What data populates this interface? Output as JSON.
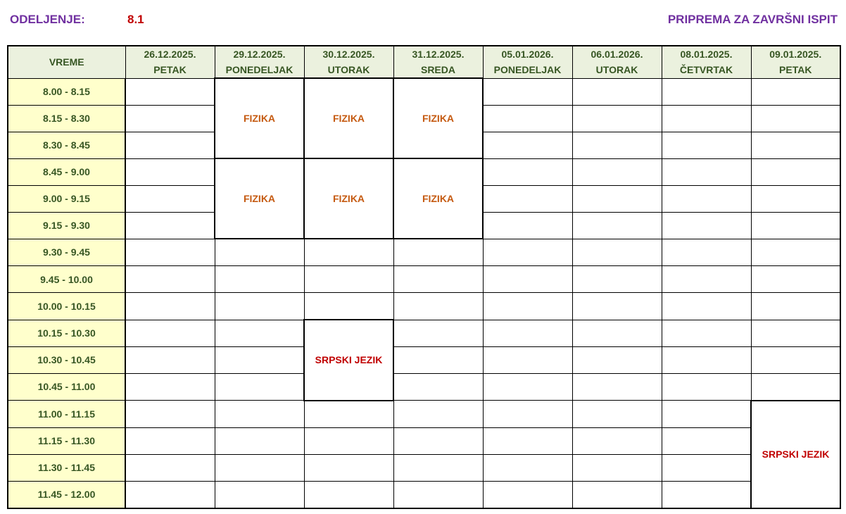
{
  "header": {
    "label": "ODELJENJE:",
    "class": "8.1",
    "title": "PRIPREMA ZA ZAVRŠNI ISPIT"
  },
  "table": {
    "time_header": "VREME",
    "days": [
      {
        "date": "26.12.2025.",
        "day": "PETAK"
      },
      {
        "date": "29.12.2025.",
        "day": "PONEDELJAK"
      },
      {
        "date": "30.12.2025.",
        "day": "UTORAK"
      },
      {
        "date": "31.12.2025.",
        "day": "SREDA"
      },
      {
        "date": "05.01.2026.",
        "day": "PONEDELJAK"
      },
      {
        "date": "06.01.2026.",
        "day": "UTORAK"
      },
      {
        "date": "08.01.2025.",
        "day": "ČETVRTAK"
      },
      {
        "date": "09.01.2025.",
        "day": "PETAK"
      }
    ],
    "times": [
      "8.00 - 8.15",
      "8.15 - 8.30",
      "8.30 - 8.45",
      "8.45 - 9.00",
      "9.00 - 9.15",
      "9.15 - 9.30",
      "9.30 - 9.45",
      "9.45 - 10.00",
      "10.00 - 10.15",
      "10.15 - 10.30",
      "10.30 - 10.45",
      "10.45 - 11.00",
      "11.00 - 11.15",
      "11.15 - 11.30",
      "11.30 - 11.45",
      "11.45 - 12.00"
    ],
    "events": [
      {
        "day": 1,
        "start": 0,
        "span": 3,
        "subject": "FIZIKA",
        "color": "#C55A11"
      },
      {
        "day": 2,
        "start": 0,
        "span": 3,
        "subject": "FIZIKA",
        "color": "#C55A11"
      },
      {
        "day": 3,
        "start": 0,
        "span": 3,
        "subject": "FIZIKA",
        "color": "#C55A11"
      },
      {
        "day": 1,
        "start": 3,
        "span": 3,
        "subject": "FIZIKA",
        "color": "#C55A11"
      },
      {
        "day": 2,
        "start": 3,
        "span": 3,
        "subject": "FIZIKA",
        "color": "#C55A11"
      },
      {
        "day": 3,
        "start": 3,
        "span": 3,
        "subject": "FIZIKA",
        "color": "#C55A11"
      },
      {
        "day": 2,
        "start": 9,
        "span": 3,
        "subject": "SRPSKI JEZIK",
        "color": "#C00000"
      },
      {
        "day": 7,
        "start": 12,
        "span": 4,
        "subject": "SRPSKI JEZIK",
        "color": "#C00000"
      }
    ]
  }
}
